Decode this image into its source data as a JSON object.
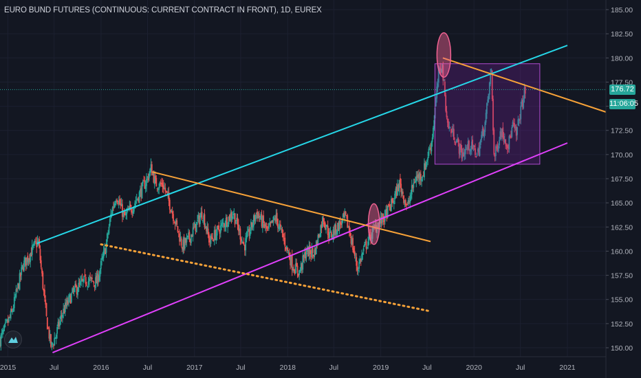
{
  "title": "EURO BUND FUTURES (CONTINUOUS: CURRENT CONTRACT IN FRONT), 1D, EUREX",
  "last_price_label": "176.72",
  "countdown_label": "11:06:05",
  "colors": {
    "background": "#131722",
    "channel_upper": "#26d7e8",
    "channel_lower": "#e040fb",
    "resistance": "#f7a238",
    "highlight_box": "#7b1fa2",
    "candle_up": "#26a69a",
    "candle_down": "#ef5350",
    "price_badge": "#26a69a"
  },
  "chart_data": {
    "type": "candlestick",
    "title": "EURO BUND FUTURES (CONTINUOUS: CURRENT CONTRACT IN FRONT), 1D, EUREX",
    "y_axis": {
      "ticks": [
        "185.00",
        "182.50",
        "180.00",
        "177.50",
        "175.00",
        "172.50",
        "170.00",
        "167.50",
        "165.00",
        "162.50",
        "160.00",
        "157.50",
        "155.00",
        "152.50",
        "150.00"
      ],
      "range": [
        149.5,
        186.0
      ],
      "side": "right"
    },
    "x_axis": {
      "ticks": [
        "2015",
        "Jul",
        "2016",
        "Jul",
        "2017",
        "Jul",
        "2018",
        "Jul",
        "2019",
        "Jul",
        "2020",
        "Jul",
        "2021"
      ],
      "range": [
        "2014-12-01",
        "2021-06-01"
      ]
    },
    "price_path": [
      [
        "2014-12-01",
        150.8
      ],
      [
        "2015-01-15",
        153.5
      ],
      [
        "2015-03-01",
        158.5
      ],
      [
        "2015-04-15",
        160.5
      ],
      [
        "2015-04-30",
        161.0
      ],
      [
        "2015-06-01",
        153.0
      ],
      [
        "2015-06-20",
        150.0
      ],
      [
        "2015-07-10",
        151.5
      ],
      [
        "2015-08-01",
        153.5
      ],
      [
        "2015-09-15",
        155.8
      ],
      [
        "2015-11-01",
        157.0
      ],
      [
        "2015-12-15",
        156.8
      ],
      [
        "2016-01-20",
        160.5
      ],
      [
        "2016-02-10",
        164.0
      ],
      [
        "2016-03-01",
        165.8
      ],
      [
        "2016-04-01",
        163.5
      ],
      [
        "2016-05-01",
        164.5
      ],
      [
        "2016-06-01",
        166.0
      ],
      [
        "2016-06-30",
        167.5
      ],
      [
        "2016-07-15",
        168.6
      ],
      [
        "2016-08-01",
        167.0
      ],
      [
        "2016-09-01",
        166.8
      ],
      [
        "2016-10-01",
        164.5
      ],
      [
        "2016-11-15",
        160.5
      ],
      [
        "2016-12-15",
        161.5
      ],
      [
        "2017-02-01",
        164.0
      ],
      [
        "2017-03-01",
        161.0
      ],
      [
        "2017-04-15",
        162.5
      ],
      [
        "2017-06-01",
        164.0
      ],
      [
        "2017-07-15",
        160.5
      ],
      [
        "2017-09-01",
        164.0
      ],
      [
        "2017-10-15",
        162.0
      ],
      [
        "2017-11-15",
        163.5
      ],
      [
        "2017-12-20",
        161.0
      ],
      [
        "2018-01-20",
        158.5
      ],
      [
        "2018-02-15",
        157.8
      ],
      [
        "2018-03-15",
        160.0
      ],
      [
        "2018-04-15",
        159.8
      ],
      [
        "2018-05-20",
        163.5
      ],
      [
        "2018-06-15",
        161.5
      ],
      [
        "2018-07-15",
        162.5
      ],
      [
        "2018-08-15",
        163.5
      ],
      [
        "2018-09-01",
        162.0
      ],
      [
        "2018-10-01",
        158.2
      ],
      [
        "2018-11-01",
        160.5
      ],
      [
        "2018-12-10",
        162.5
      ],
      [
        "2019-01-15",
        163.5
      ],
      [
        "2019-02-15",
        165.0
      ],
      [
        "2019-03-15",
        167.0
      ],
      [
        "2019-04-15",
        164.5
      ],
      [
        "2019-05-15",
        167.5
      ],
      [
        "2019-06-15",
        168.0
      ],
      [
        "2019-07-20",
        171.5
      ],
      [
        "2019-08-15",
        178.2
      ],
      [
        "2019-08-28",
        179.5
      ],
      [
        "2019-09-20",
        173.0
      ],
      [
        "2019-10-15",
        172.0
      ],
      [
        "2019-11-15",
        170.0
      ],
      [
        "2019-12-15",
        171.0
      ],
      [
        "2020-01-15",
        170.0
      ],
      [
        "2020-02-15",
        173.5
      ],
      [
        "2020-03-09",
        178.8
      ],
      [
        "2020-03-20",
        169.5
      ],
      [
        "2020-04-15",
        172.5
      ],
      [
        "2020-05-15",
        171.0
      ],
      [
        "2020-06-01",
        173.0
      ],
      [
        "2020-06-15",
        172.0
      ],
      [
        "2020-07-01",
        174.5
      ],
      [
        "2020-07-20",
        176.72
      ]
    ],
    "annotations": {
      "upper_channel_line": {
        "from": [
          "2015-04-25",
          160.8
        ],
        "to": [
          "2021-01-01",
          181.3
        ]
      },
      "lower_channel_line": {
        "from": [
          "2015-06-25",
          149.5
        ],
        "to": [
          "2021-01-01",
          171.2
        ]
      },
      "resistance_line_1": {
        "from": [
          "2016-07-20",
          168.2
        ],
        "to": [
          "2019-07-15",
          161.0
        ]
      },
      "dotted_support_line": {
        "from": [
          "2016-01-01",
          160.7
        ],
        "to": [
          "2019-07-10",
          153.8
        ]
      },
      "resistance_line_2": {
        "from": [
          "2019-09-01",
          180.0
        ],
        "to": [
          "2021-06-01",
          174.4
        ]
      },
      "highlight_box": {
        "from": [
          "2019-08-01",
          179.4
        ],
        "to": [
          "2020-09-15",
          169.0
        ]
      },
      "ellipses": [
        {
          "center": [
            "2018-12-05",
            162.8
          ],
          "half_width_days": 22,
          "half_height": 2.1
        },
        {
          "center": [
            "2019-09-05",
            180.3
          ],
          "half_width_days": 27,
          "half_height": 2.3
        }
      ],
      "current_price_line": 176.72
    }
  }
}
